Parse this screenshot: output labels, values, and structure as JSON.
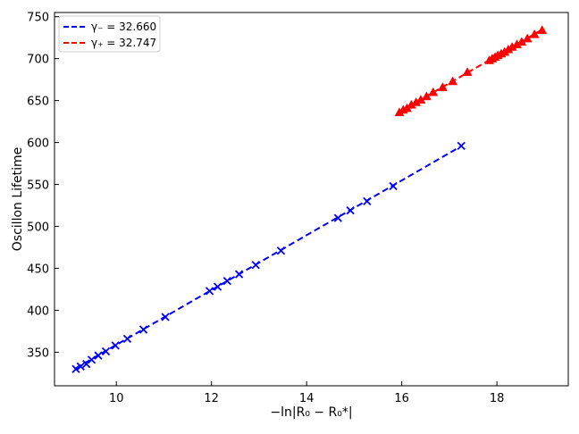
{
  "chart_data": {
    "type": "scatter",
    "xlabel": "−ln|R₀ − R₀*|",
    "ylabel": "Oscillon Lifetime",
    "xlim": [
      8.7,
      19.5
    ],
    "ylim": [
      310,
      755
    ],
    "x_ticks": [
      10,
      12,
      14,
      16,
      18
    ],
    "y_ticks": [
      350,
      400,
      450,
      500,
      550,
      600,
      650,
      700,
      750
    ],
    "legend_position": "top-left",
    "series": [
      {
        "legend": "γ₋ = 32.660",
        "color": "#0000ff",
        "marker": "x",
        "fit": {
          "slope": 32.66,
          "intercept": 32.25,
          "x_range": [
            9.15,
            17.25
          ]
        },
        "points": [
          [
            9.15,
            330
          ],
          [
            9.25,
            333
          ],
          [
            9.37,
            336
          ],
          [
            9.48,
            341
          ],
          [
            9.62,
            346
          ],
          [
            9.78,
            351
          ],
          [
            9.98,
            358
          ],
          [
            10.23,
            366
          ],
          [
            10.57,
            377
          ],
          [
            11.03,
            392
          ],
          [
            11.96,
            423
          ],
          [
            12.13,
            428
          ],
          [
            12.33,
            435
          ],
          [
            12.58,
            443
          ],
          [
            12.93,
            454
          ],
          [
            13.46,
            471
          ],
          [
            14.66,
            510
          ],
          [
            14.92,
            519
          ],
          [
            15.27,
            530
          ],
          [
            15.82,
            548
          ],
          [
            17.25,
            596
          ]
        ]
      },
      {
        "legend": "γ₊ = 32.747",
        "color": "#ff0000",
        "marker": "^",
        "fit": {
          "slope": 32.747,
          "intercept": 114.1,
          "x_range": [
            15.95,
            18.95
          ]
        },
        "points": [
          [
            15.95,
            636
          ],
          [
            16.03,
            639
          ],
          [
            16.11,
            641
          ],
          [
            16.2,
            645
          ],
          [
            16.3,
            648
          ],
          [
            16.4,
            651
          ],
          [
            16.52,
            655
          ],
          [
            16.66,
            660
          ],
          [
            16.86,
            666
          ],
          [
            17.07,
            673
          ],
          [
            17.38,
            684
          ],
          [
            17.84,
            698
          ],
          [
            17.9,
            700
          ],
          [
            17.96,
            702
          ],
          [
            18.02,
            704
          ],
          [
            18.09,
            706
          ],
          [
            18.16,
            708
          ],
          [
            18.24,
            711
          ],
          [
            18.32,
            714
          ],
          [
            18.42,
            717
          ],
          [
            18.52,
            720
          ],
          [
            18.64,
            724
          ],
          [
            18.79,
            729
          ],
          [
            18.95,
            734
          ]
        ]
      }
    ]
  }
}
